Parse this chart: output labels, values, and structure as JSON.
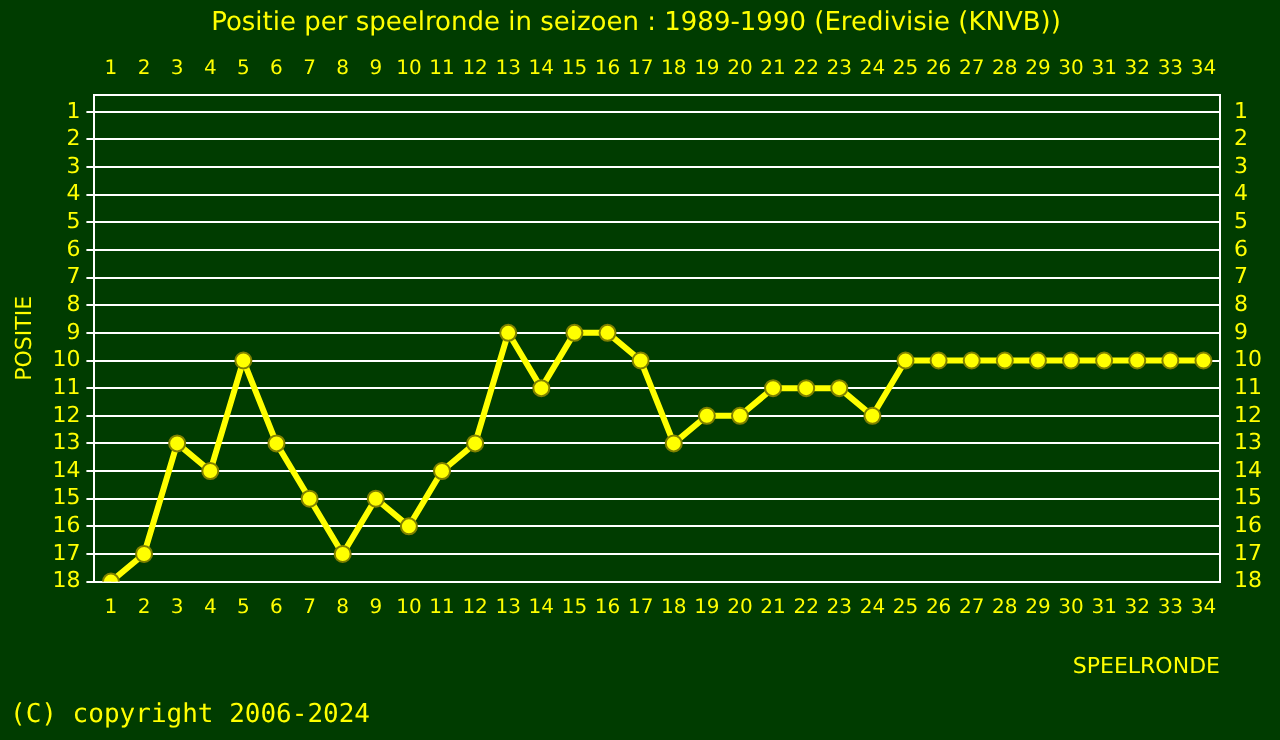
{
  "chart_data": {
    "type": "line",
    "title": "Positie per speelronde in seizoen : 1989-1990 (Eredivisie (KNVB))",
    "xlabel": "SPEELRONDE",
    "ylabel": "POSITIE",
    "annotations": [
      "(C) copyright 2006-2024"
    ],
    "x": [
      1,
      2,
      3,
      4,
      5,
      6,
      7,
      8,
      9,
      10,
      11,
      12,
      13,
      14,
      15,
      16,
      17,
      18,
      19,
      20,
      21,
      22,
      23,
      24,
      25,
      26,
      27,
      28,
      29,
      30,
      31,
      32,
      33,
      34
    ],
    "series": [
      {
        "color": "#ffff00",
        "values": [
          18,
          17,
          13,
          14,
          10,
          13,
          15,
          17,
          15,
          16,
          14,
          13,
          9,
          11,
          9,
          9,
          10,
          13,
          12,
          12,
          11,
          11,
          11,
          12,
          10,
          10,
          10,
          10,
          10,
          10,
          10,
          10,
          10,
          10
        ]
      }
    ],
    "xlim": [
      0.5,
      34.5
    ],
    "xticks": [
      1,
      2,
      3,
      4,
      5,
      6,
      7,
      8,
      9,
      10,
      11,
      12,
      13,
      14,
      15,
      16,
      17,
      18,
      19,
      20,
      21,
      22,
      23,
      24,
      25,
      26,
      27,
      28,
      29,
      30,
      31,
      32,
      33,
      34
    ],
    "x2lim": [
      0.5,
      34.5
    ],
    "x2ticks": [
      1,
      2,
      3,
      4,
      5,
      6,
      7,
      8,
      9,
      10,
      11,
      12,
      13,
      14,
      15,
      16,
      17,
      18,
      19,
      20,
      21,
      22,
      23,
      24,
      25,
      26,
      27,
      28,
      29,
      30,
      31,
      32,
      33,
      34
    ],
    "ylim": [
      18,
      0.4
    ],
    "yticks": [
      1,
      2,
      3,
      4,
      5,
      6,
      7,
      8,
      9,
      10,
      11,
      12,
      13,
      14,
      15,
      16,
      17,
      18
    ],
    "y2lim": [
      18,
      0.4
    ],
    "y2ticks": [
      1,
      2,
      3,
      4,
      5,
      6,
      7,
      8,
      9,
      10,
      11,
      12,
      13,
      14,
      15,
      16,
      17,
      18
    ],
    "grid": "y",
    "legend": false,
    "marker": "circle",
    "line_style": "solid"
  }
}
